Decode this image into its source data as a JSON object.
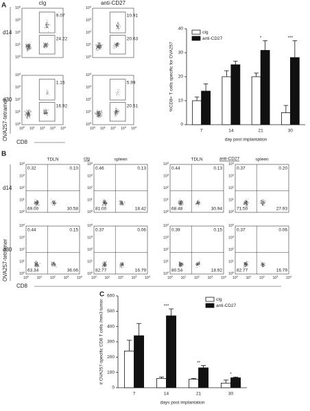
{
  "panel_labels": [
    "A",
    "B",
    "C"
  ],
  "flow_a": {
    "tick_base": "10",
    "tick_exponents": [
      "0",
      "1",
      "2",
      "3",
      "4"
    ],
    "x_label": "CD8",
    "y_label": "OVA257-tetramer",
    "columns": [
      "cIg",
      "anti-CD27"
    ],
    "rows": [
      "d14",
      "d30"
    ],
    "plots": [
      [
        {
          "upper": "9.07",
          "lower": "24.22"
        },
        {
          "upper": "10.91",
          "lower": "20.63"
        }
      ],
      [
        {
          "upper": "1.15",
          "lower": "16.92"
        },
        {
          "upper": "5.99",
          "lower": "20.51"
        }
      ]
    ]
  },
  "flow_b": {
    "tick_base": "10",
    "tick_exponents": [
      "0",
      "1",
      "2",
      "3",
      "4"
    ],
    "x_label": "CD8",
    "y_label": "OVA257-tetramer",
    "groups": [
      "cIg",
      "anti-CD27"
    ],
    "columns": [
      "TDLN",
      "spleen",
      "TDLN",
      "spleen"
    ],
    "rows": [
      "d14",
      "d30"
    ],
    "plots": [
      [
        {
          "ul": "0.32",
          "ur": "0.10",
          "ll": "69.00",
          "lr": "30.58"
        },
        {
          "ul": "0.46",
          "ur": "0.13",
          "ll": "81.00",
          "lr": "18.42"
        },
        {
          "ul": "0.44",
          "ur": "0.13",
          "ll": "68.48",
          "lr": "30.94"
        },
        {
          "ul": "0.37",
          "ur": "0.20",
          "ll": "71.50",
          "lr": "27.93"
        }
      ],
      [
        {
          "ul": "0.44",
          "ur": "0.15",
          "ll": "63.34",
          "lr": "36.06"
        },
        {
          "ul": "0.37",
          "ur": "0.06",
          "ll": "82.77",
          "lr": "16.79"
        },
        {
          "ul": "0.39",
          "ur": "0.15",
          "ll": "80.54",
          "lr": "18.92"
        },
        {
          "ul": "0.37",
          "ur": "0.06",
          "ll": "82.77",
          "lr": "16.79"
        }
      ]
    ]
  },
  "chart_data": [
    {
      "type": "bar",
      "y_label": "%CD8+ T cells specific for OVA257",
      "x_label": "day post implantation",
      "categories": [
        "7",
        "14",
        "21",
        "30"
      ],
      "series": [
        {
          "name": "cIg",
          "color": "#ffffff",
          "values": [
            10,
            20,
            20,
            5
          ],
          "errors": [
            1.5,
            2.5,
            1.5,
            3
          ]
        },
        {
          "name": "anti-CD27",
          "color": "#111111",
          "values": [
            14,
            25,
            31,
            28
          ],
          "errors": [
            3,
            1.5,
            4,
            7
          ]
        }
      ],
      "ylim": [
        0,
        40
      ],
      "yticks": [
        0,
        10,
        20,
        30,
        40
      ],
      "legend": "upper left",
      "annotations": [
        {
          "x": "21",
          "text": "*"
        },
        {
          "x": "30",
          "text": "***"
        }
      ]
    },
    {
      "type": "bar",
      "y_label": "# OVA257-specific CD8 T cells /mm3 tumor",
      "x_label": "days post implantation",
      "categories": [
        "7",
        "14",
        "21",
        "30"
      ],
      "series": [
        {
          "name": "cIg",
          "color": "#ffffff",
          "values": [
            240,
            60,
            55,
            30
          ],
          "errors": [
            70,
            10,
            5,
            20
          ]
        },
        {
          "name": "anti-CD27",
          "color": "#111111",
          "values": [
            340,
            470,
            130,
            65
          ],
          "errors": [
            80,
            45,
            15,
            5
          ]
        }
      ],
      "ylim": [
        0,
        600
      ],
      "yticks": [
        0,
        100,
        200,
        300,
        400,
        500,
        600
      ],
      "legend": "upper right",
      "annotations": [
        {
          "x": "14",
          "text": "***"
        },
        {
          "x": "21",
          "text": "**"
        },
        {
          "x": "30",
          "text": "*"
        }
      ]
    }
  ]
}
